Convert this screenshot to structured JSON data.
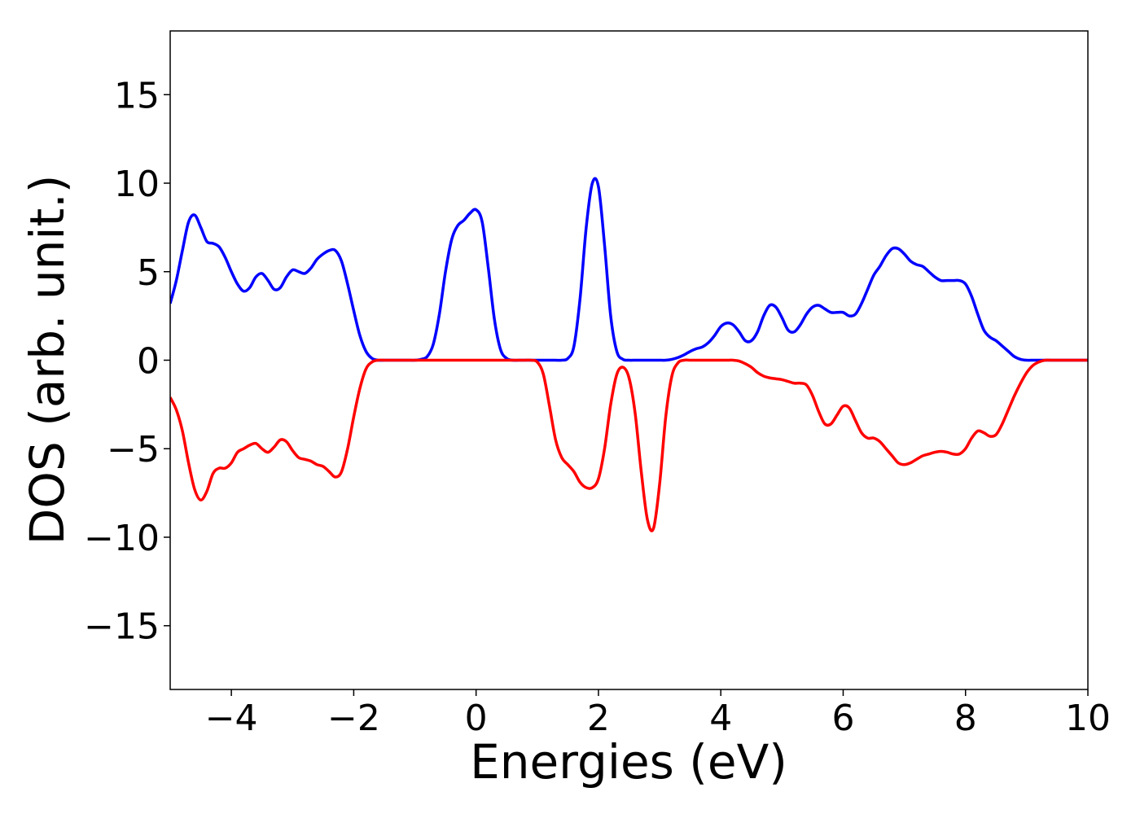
{
  "chart_data": {
    "type": "line",
    "xlabel": "Energies (eV)",
    "ylabel": "DOS (arb. unit.)",
    "xlim": [
      -5,
      10
    ],
    "ylim": [
      -18.6,
      18.6
    ],
    "xticks": [
      {
        "value": -4,
        "label": "−4"
      },
      {
        "value": -2,
        "label": "−2"
      },
      0,
      2,
      4,
      6,
      8,
      10
    ],
    "yticks": [
      {
        "value": -15,
        "label": "−15"
      },
      {
        "value": -10,
        "label": "−10"
      },
      {
        "value": -5,
        "label": "−5"
      },
      0,
      5,
      10,
      15
    ],
    "grid": false,
    "x": [
      -5,
      -4.9,
      -4.8,
      -4.7,
      -4.6,
      -4.5,
      -4.4,
      -4.3,
      -4.2,
      -4.1,
      -4,
      -3.9,
      -3.8,
      -3.7,
      -3.6,
      -3.5,
      -3.4,
      -3.3,
      -3.2,
      -3.1,
      -3,
      -2.9,
      -2.8,
      -2.7,
      -2.6,
      -2.5,
      -2.4,
      -2.3,
      -2.2,
      -2.1,
      -2,
      -1.9,
      -1.8,
      -1.7,
      -1.6,
      -1.5,
      -1.4,
      -1.3,
      -1.2,
      -1.1,
      -1,
      -0.9,
      -0.8,
      -0.7,
      -0.6,
      -0.5,
      -0.4,
      -0.3,
      -0.2,
      -0.1,
      0,
      0.1,
      0.2,
      0.3,
      0.4,
      0.5,
      0.6,
      0.7,
      0.8,
      0.9,
      1,
      1.1,
      1.2,
      1.3,
      1.4,
      1.5,
      1.6,
      1.7,
      1.8,
      1.9,
      2,
      2.1,
      2.2,
      2.3,
      2.4,
      2.5,
      2.6,
      2.7,
      2.8,
      2.9,
      3,
      3.1,
      3.2,
      3.3,
      3.4,
      3.5,
      3.6,
      3.7,
      3.8,
      3.9,
      4,
      4.1,
      4.2,
      4.3,
      4.4,
      4.5,
      4.6,
      4.7,
      4.8,
      4.9,
      5,
      5.1,
      5.2,
      5.3,
      5.4,
      5.5,
      5.6,
      5.7,
      5.8,
      5.9,
      6,
      6.1,
      6.2,
      6.3,
      6.4,
      6.5,
      6.6,
      6.7,
      6.8,
      6.9,
      7,
      7.1,
      7.2,
      7.3,
      7.4,
      7.5,
      7.6,
      7.7,
      7.8,
      7.9,
      8,
      8.1,
      8.2,
      8.3,
      8.4,
      8.5,
      8.6,
      8.7,
      8.8,
      8.9,
      9,
      9.1,
      9.2,
      9.3,
      9.4,
      9.5,
      9.6,
      9.7,
      9.8,
      9.9,
      10
    ],
    "series": [
      {
        "color": "#0000ff",
        "values": [
          3.2,
          4.5,
          6.2,
          7.8,
          8.2,
          7.5,
          6.7,
          6.6,
          6.4,
          5.8,
          5.0,
          4.3,
          3.9,
          4.1,
          4.7,
          4.9,
          4.5,
          4.0,
          4.1,
          4.7,
          5.1,
          5.0,
          4.9,
          5.2,
          5.7,
          6.0,
          6.2,
          6.2,
          5.6,
          4.3,
          2.8,
          1.4,
          0.5,
          0.1,
          0,
          0,
          0,
          0,
          0,
          0,
          0,
          0.05,
          0.2,
          0.9,
          2.6,
          5.0,
          6.8,
          7.6,
          7.9,
          8.3,
          8.5,
          7.8,
          5.2,
          2.3,
          0.6,
          0.1,
          0,
          0,
          0,
          0,
          0,
          0,
          0,
          0,
          0,
          0.1,
          0.8,
          3.5,
          7.5,
          10.0,
          9.8,
          6.5,
          2.5,
          0.5,
          0.05,
          0,
          0,
          0,
          0,
          0,
          0,
          0,
          0.05,
          0.15,
          0.3,
          0.5,
          0.65,
          0.75,
          1.0,
          1.4,
          1.9,
          2.1,
          2.0,
          1.6,
          1.1,
          1.1,
          1.6,
          2.5,
          3.1,
          3.0,
          2.4,
          1.7,
          1.6,
          2.0,
          2.6,
          3.0,
          3.1,
          2.9,
          2.7,
          2.7,
          2.7,
          2.5,
          2.6,
          3.2,
          4.0,
          4.8,
          5.3,
          5.9,
          6.3,
          6.3,
          6.0,
          5.6,
          5.4,
          5.3,
          5.0,
          4.7,
          4.5,
          4.5,
          4.5,
          4.5,
          4.3,
          3.6,
          2.6,
          1.7,
          1.3,
          1.1,
          0.8,
          0.5,
          0.2,
          0.05,
          0,
          0,
          0,
          0,
          0,
          0,
          0,
          0,
          0,
          0,
          0
        ]
      },
      {
        "color": "#ff0000",
        "values": [
          -2.1,
          -2.8,
          -4.0,
          -5.8,
          -7.3,
          -7.9,
          -7.4,
          -6.4,
          -6.1,
          -6.1,
          -5.8,
          -5.2,
          -5.0,
          -4.8,
          -4.7,
          -5.0,
          -5.2,
          -4.9,
          -4.5,
          -4.6,
          -5.1,
          -5.5,
          -5.6,
          -5.7,
          -5.9,
          -6.0,
          -6.3,
          -6.6,
          -6.3,
          -5.0,
          -3.2,
          -1.6,
          -0.5,
          -0.1,
          0,
          0,
          0,
          0,
          0,
          0,
          0,
          0,
          0,
          0,
          0,
          0,
          0,
          0,
          0,
          0,
          0,
          0,
          0,
          0,
          0,
          0,
          0,
          0,
          0,
          0,
          -0.1,
          -0.8,
          -2.6,
          -4.5,
          -5.5,
          -5.9,
          -6.3,
          -6.9,
          -7.2,
          -7.2,
          -6.7,
          -5.0,
          -2.5,
          -0.8,
          -0.4,
          -1.0,
          -3.0,
          -6.3,
          -9.0,
          -9.5,
          -7.0,
          -3.2,
          -0.9,
          -0.15,
          0,
          0,
          0,
          0,
          0,
          0,
          0,
          0,
          0,
          -0.05,
          -0.2,
          -0.4,
          -0.7,
          -0.9,
          -1.0,
          -1.05,
          -1.1,
          -1.2,
          -1.3,
          -1.3,
          -1.4,
          -2.0,
          -2.9,
          -3.6,
          -3.6,
          -3.1,
          -2.6,
          -2.7,
          -3.4,
          -4.1,
          -4.4,
          -4.4,
          -4.6,
          -5.0,
          -5.4,
          -5.8,
          -5.9,
          -5.8,
          -5.6,
          -5.4,
          -5.3,
          -5.2,
          -5.15,
          -5.2,
          -5.3,
          -5.3,
          -5.0,
          -4.4,
          -4.0,
          -4.1,
          -4.3,
          -4.2,
          -3.6,
          -2.8,
          -2.0,
          -1.3,
          -0.7,
          -0.3,
          -0.1,
          0,
          0,
          0,
          0,
          0,
          0,
          0,
          0
        ]
      }
    ]
  }
}
